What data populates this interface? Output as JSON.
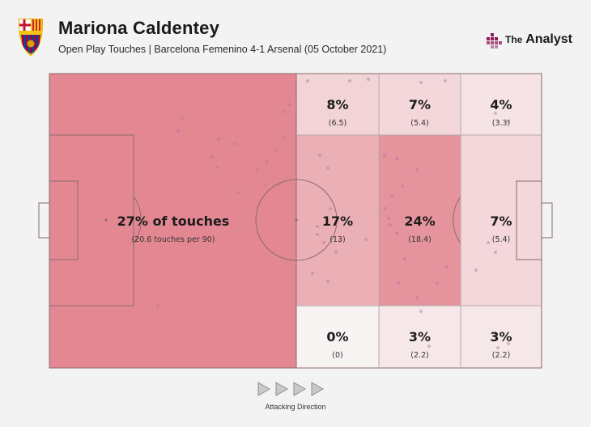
{
  "header": {
    "title": "Mariona Caldentey",
    "subtitle": "Open Play Touches | Barcelona Femenino 4-1 Arsenal (05 October 2021)",
    "brand_prefix": "The",
    "brand_name": "Analyst",
    "crest_name": "FC Barcelona crest"
  },
  "chart_data": {
    "type": "heatmap",
    "description_label": "Open play touches by pitch zone",
    "zones": [
      {
        "id": "own-half",
        "percent": "27% of touches",
        "value": "(20.6 touches per 90)",
        "share": 27
      },
      {
        "id": "r1-top",
        "percent": "8%",
        "value": "(6.5)",
        "share": 8
      },
      {
        "id": "r2-top",
        "percent": "7%",
        "value": "(5.4)",
        "share": 7
      },
      {
        "id": "r3-top",
        "percent": "4%",
        "value": "(3.3)",
        "share": 4
      },
      {
        "id": "r1-mid",
        "percent": "17%",
        "value": "(13)",
        "share": 17
      },
      {
        "id": "r2-mid",
        "percent": "24%",
        "value": "(18.4)",
        "share": 24
      },
      {
        "id": "r3-mid",
        "percent": "7%",
        "value": "(5.4)",
        "share": 7
      },
      {
        "id": "r1-bot",
        "percent": "0%",
        "value": "(0)",
        "share": 0
      },
      {
        "id": "r2-bot",
        "percent": "3%",
        "value": "(2.2)",
        "share": 3
      },
      {
        "id": "r3-bot",
        "percent": "3%",
        "value": "(2.2)",
        "share": 3
      }
    ],
    "color_scale": {
      "low": "#f8f3f3",
      "high": "#e38892"
    }
  },
  "footer": {
    "direction_label": "Attacking Direction",
    "arrow_count": 4
  },
  "colors": {
    "pitch_line": "#8a6a6e",
    "dot": "#b070a8",
    "background": "#f3f3f3"
  }
}
